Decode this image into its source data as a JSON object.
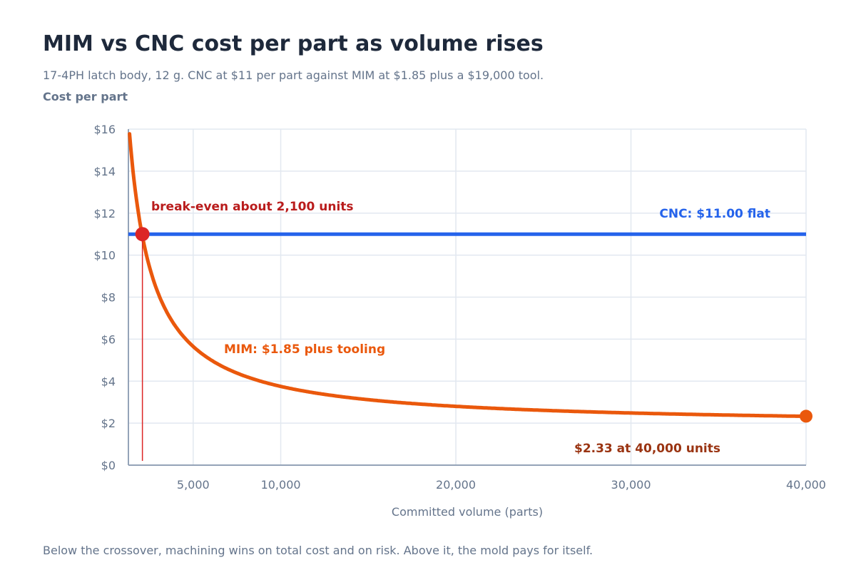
{
  "title": "MIM vs CNC cost per part as volume rises",
  "subtitle": "17-4PH latch body, 12 g. CNC at $11 per part against MIM at $1.85 plus a $19,000 tool.",
  "footnote": "Below the crossover, machining wins on total cost and on risk. Above it, the mold pays for itself.",
  "colors": {
    "cnc": "#2563eb",
    "mim": "#ea580c",
    "breakeven": "#dc2626",
    "breakeven_text": "#b91c1c",
    "endpoint_text": "#9a3412",
    "grid": "#e2e8f0",
    "axis": "#94a3b8"
  },
  "chart_data": {
    "type": "line",
    "title": "MIM vs CNC cost per part as volume rises",
    "xlabel": "Committed volume (parts)",
    "ylabel": "Cost per part",
    "xlim": [
      1300,
      40000
    ],
    "ylim": [
      0,
      16
    ],
    "x_ticks": [
      5000,
      10000,
      20000,
      30000,
      40000
    ],
    "x_tick_labels": [
      "5,000",
      "10,000",
      "20,000",
      "30,000",
      "40,000"
    ],
    "y_ticks": [
      0,
      2,
      4,
      6,
      8,
      10,
      12,
      14,
      16
    ],
    "y_tick_labels": [
      "$0",
      "$2",
      "$4",
      "$6",
      "$8",
      "$10",
      "$12",
      "$14",
      "$16"
    ],
    "grid": true,
    "series": [
      {
        "name": "CNC: $11.00 flat",
        "kind": "constant",
        "value": 11.0,
        "x": [
          1300,
          40000
        ],
        "y": [
          11.0,
          11.0
        ]
      },
      {
        "name": "MIM: $1.85 plus tooling",
        "kind": "fixed-plus-variable",
        "variable_cost": 1.85,
        "tooling": 19000,
        "x": [
          1300,
          2100,
          5000,
          10000,
          20000,
          30000,
          40000
        ],
        "y": [
          16.47,
          10.9,
          5.65,
          3.75,
          2.8,
          2.48,
          2.33
        ]
      }
    ],
    "annotations": {
      "breakeven": {
        "label": "break-even about 2,100 units",
        "x": 2100,
        "y": 11.0
      },
      "endpoint": {
        "label": "$2.33 at 40,000 units",
        "x": 40000,
        "y": 2.33
      },
      "cnc_label": "CNC: $11.00 flat",
      "mim_label": "MIM: $1.85 plus tooling"
    }
  }
}
